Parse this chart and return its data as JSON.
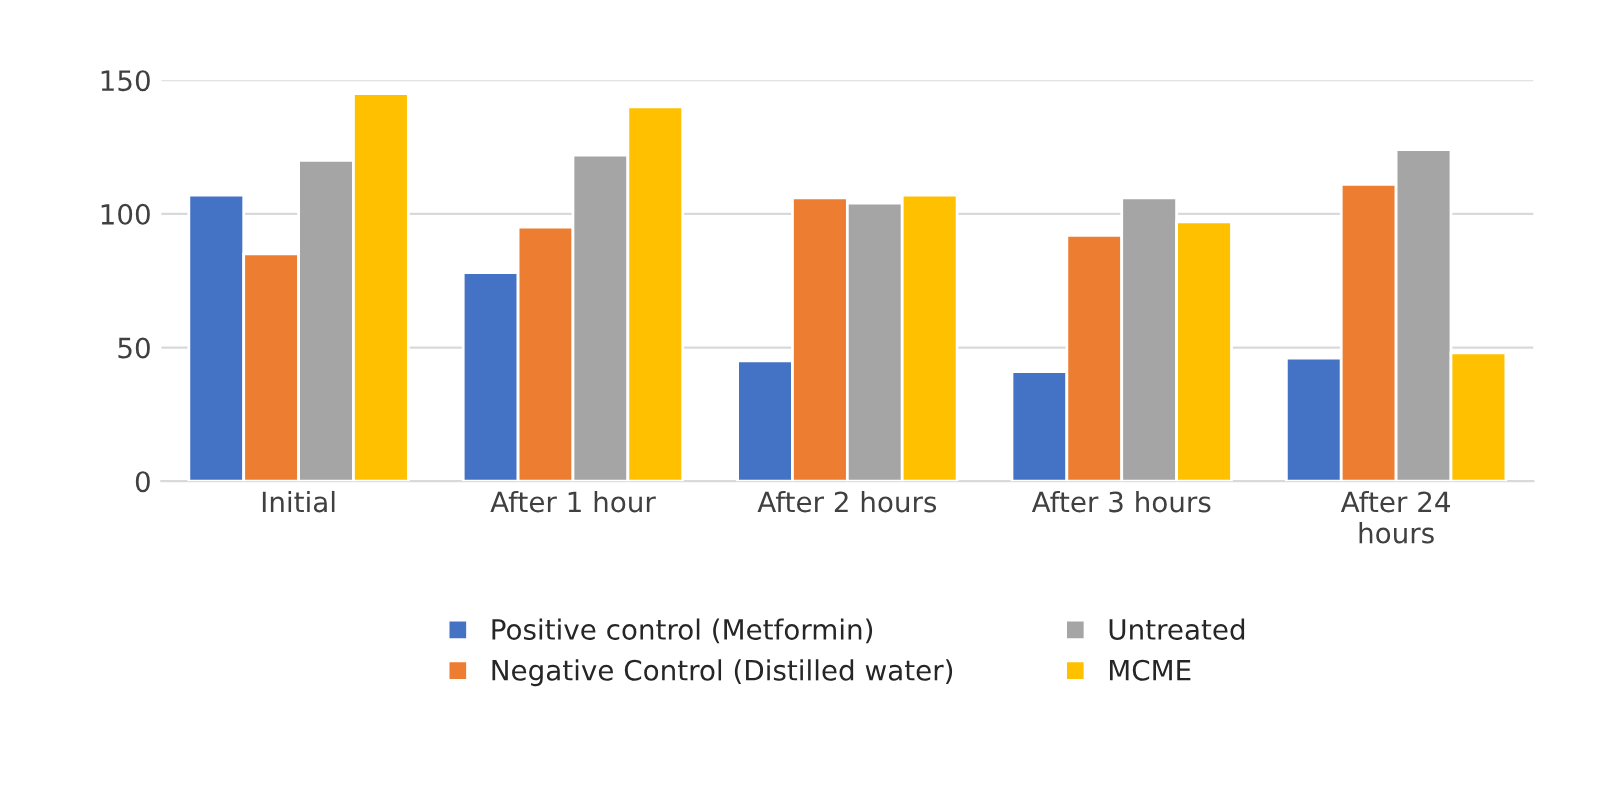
{
  "chart_data": {
    "type": "bar",
    "categories": [
      "Initial",
      "After 1 hour",
      "After 2 hours",
      "After 3 hours",
      "After 24\nhours"
    ],
    "series": [
      {
        "name": "Positive control (Metformin)",
        "color": "#4472c4",
        "values": [
          107,
          78,
          45,
          41,
          46
        ]
      },
      {
        "name": "Negative Control (Distilled water)",
        "color": "#ed7d31",
        "values": [
          85,
          95,
          106,
          92,
          111
        ]
      },
      {
        "name": "Untreated",
        "color": "#a5a5a5",
        "values": [
          120,
          122,
          104,
          106,
          124
        ]
      },
      {
        "name": "MCME",
        "color": "#ffc000",
        "values": [
          145,
          140,
          107,
          97,
          48
        ]
      }
    ],
    "ylim": [
      0,
      150
    ],
    "yticks": [
      0,
      50,
      100,
      150
    ],
    "grid": "y",
    "legend": "bottom"
  }
}
